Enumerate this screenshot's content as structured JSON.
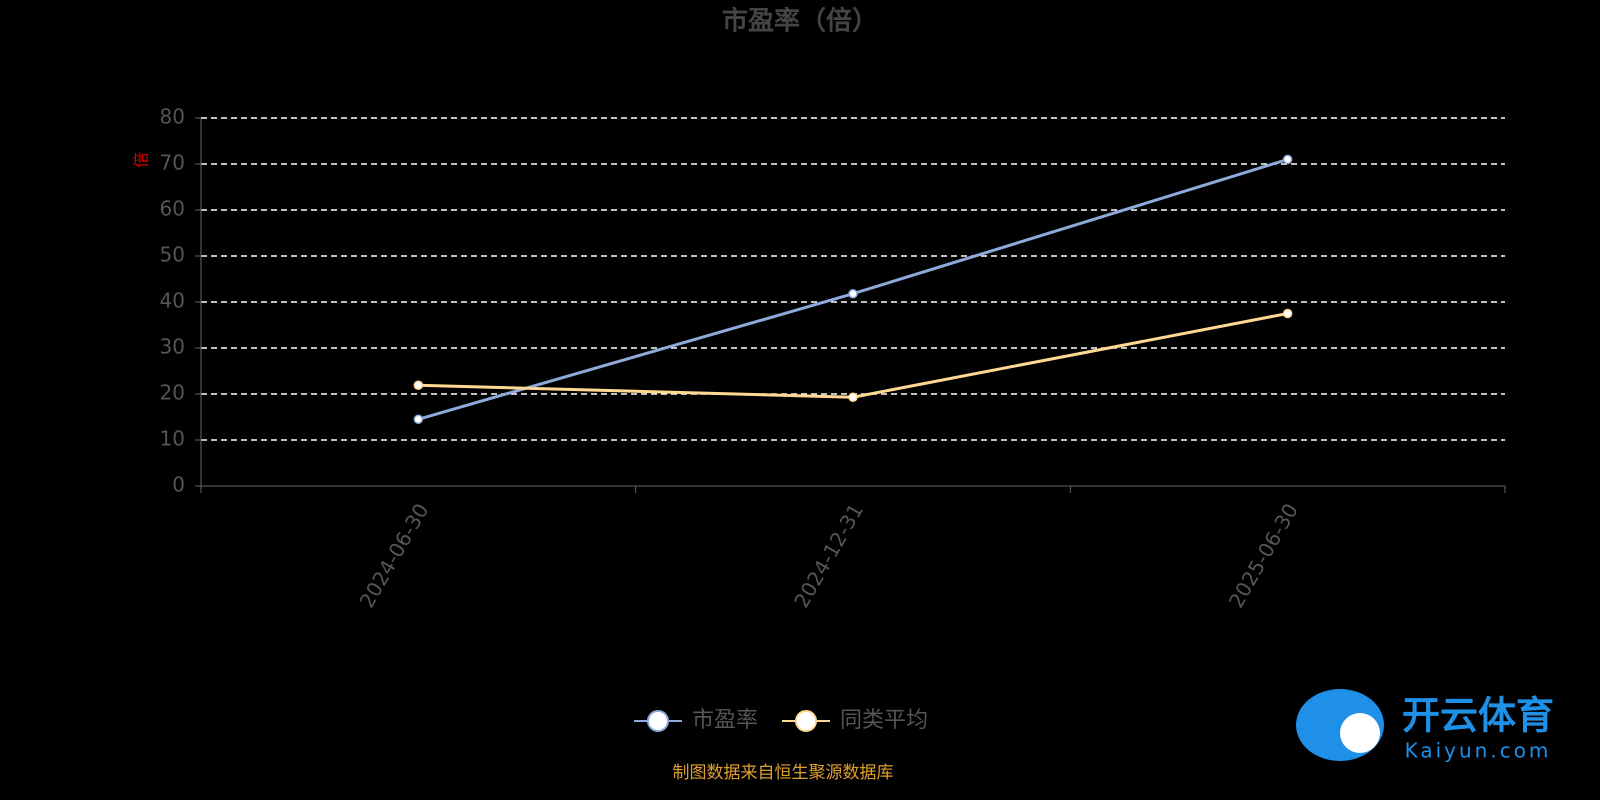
{
  "chart_data": {
    "type": "line",
    "title": "市盈率（倍）",
    "y_label": "倍",
    "categories": [
      "2024-06-30",
      "2024-12-31",
      "2025-06-30"
    ],
    "series": [
      {
        "name": "市盈率",
        "color": "#8eaadb",
        "values": [
          14.5,
          41.8,
          71.0
        ]
      },
      {
        "name": "同类平均",
        "color": "#ffd993",
        "values": [
          21.9,
          19.3,
          37.5
        ]
      }
    ],
    "ylim": [
      0,
      80
    ],
    "yticks": [
      0,
      10,
      20,
      30,
      40,
      50,
      60,
      70,
      80
    ],
    "grid": true,
    "legend": "bottom",
    "source": "制图数据来自恒生聚源数据库"
  },
  "logo": {
    "name": "开云体育",
    "url": "Kaiyun.com"
  }
}
